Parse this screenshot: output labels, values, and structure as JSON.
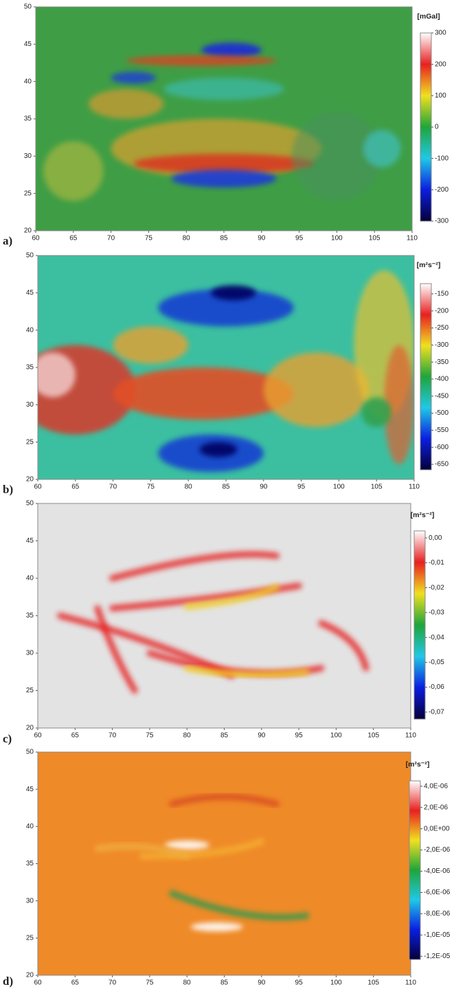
{
  "chart_data": [
    {
      "type": "heatmap",
      "panel_label": "a)",
      "xlim": [
        60,
        110
      ],
      "xticks": [
        60,
        65,
        70,
        75,
        80,
        85,
        90,
        95,
        100,
        105,
        110
      ],
      "ylim": [
        20,
        50
      ],
      "yticks": [
        20,
        25,
        30,
        35,
        40,
        45,
        50
      ],
      "colorbar": {
        "label": "[mGal]",
        "lim": [
          -300,
          300
        ],
        "ticks": [
          300,
          200,
          100,
          0,
          -100,
          -200,
          -300
        ],
        "colors": [
          "#05003a",
          "#0a1ee0",
          "#20c8e6",
          "#1fa53a",
          "#f0e020",
          "#e82020",
          "#ffffff"
        ]
      }
    },
    {
      "type": "heatmap",
      "panel_label": "b)",
      "xlim": [
        60,
        110
      ],
      "xticks": [
        60,
        65,
        70,
        75,
        80,
        85,
        90,
        95,
        100,
        105,
        110
      ],
      "ylim": [
        20,
        50
      ],
      "yticks": [
        20,
        25,
        30,
        35,
        40,
        45,
        50
      ],
      "colorbar": {
        "label": "[m²s⁻²]",
        "lim": [
          -666,
          -120
        ],
        "ticks": [
          -150,
          -200,
          -250,
          -300,
          -350,
          -400,
          -450,
          -500,
          -550,
          -600,
          -650
        ],
        "colors": [
          "#05003a",
          "#0a1ee0",
          "#20c8e6",
          "#1fa53a",
          "#f0e020",
          "#e82020",
          "#ffffff"
        ]
      }
    },
    {
      "type": "heatmap",
      "panel_label": "c)",
      "xlim": [
        60,
        110
      ],
      "xticks": [
        60,
        65,
        70,
        75,
        80,
        85,
        90,
        95,
        100,
        105,
        110
      ],
      "ylim": [
        20,
        50
      ],
      "yticks": [
        20,
        25,
        30,
        35,
        40,
        45,
        50
      ],
      "colorbar": {
        "label": "[m²s⁻²]",
        "lim": [
          -0.0728,
          0.0028
        ],
        "ticks": [
          {
            "value": 0,
            "label": "0,00"
          },
          {
            "value": -0.01,
            "label": "-0,01"
          },
          {
            "value": -0.02,
            "label": "-0,02"
          },
          {
            "value": -0.03,
            "label": "-0,03"
          },
          {
            "value": -0.04,
            "label": "-0,04"
          },
          {
            "value": -0.05,
            "label": "-0,05"
          },
          {
            "value": -0.06,
            "label": "-0,06"
          },
          {
            "value": -0.07,
            "label": "-0,07"
          }
        ],
        "colors": [
          "#05003a",
          "#0a1ee0",
          "#20c8e6",
          "#1fa53a",
          "#f0e020",
          "#e82020",
          "#ffffff"
        ]
      }
    },
    {
      "type": "heatmap",
      "panel_label": "d)",
      "xlim": [
        60,
        110
      ],
      "xticks": [
        60,
        65,
        70,
        75,
        80,
        85,
        90,
        95,
        100,
        105,
        110
      ],
      "ylim": [
        20,
        50
      ],
      "yticks": [
        20,
        25,
        30,
        35,
        40,
        45,
        50
      ],
      "colorbar": {
        "label": "[m²s⁻²]",
        "lim": [
          -1.23e-05,
          4.5e-06
        ],
        "ticks": [
          {
            "value": 4e-06,
            "label": "4,0E-06"
          },
          {
            "value": 2e-06,
            "label": "2,0E-06"
          },
          {
            "value": 0,
            "label": "0,0E+00"
          },
          {
            "value": -2e-06,
            "label": "-2,0E-06"
          },
          {
            "value": -4e-06,
            "label": "-4,0E-06"
          },
          {
            "value": -6e-06,
            "label": "-6,0E-06"
          },
          {
            "value": -8e-06,
            "label": "-8,0E-06"
          },
          {
            "value": -1e-05,
            "label": "-1,0E-05"
          },
          {
            "value": -1.2e-05,
            "label": "-1,2E-05"
          }
        ],
        "colors": [
          "#05003a",
          "#0a1ee0",
          "#20c8e6",
          "#1fa53a",
          "#f0e020",
          "#e82020",
          "#ffffff"
        ]
      }
    }
  ]
}
